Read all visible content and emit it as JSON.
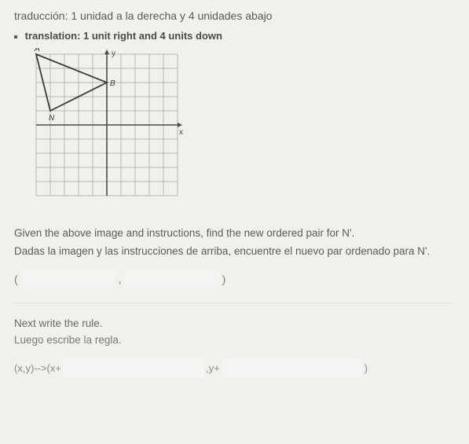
{
  "titles": {
    "spanish": "traducción: 1 unidad a la derecha y 4 unidades abajo",
    "english": "translation: 1 unit right and 4 units down"
  },
  "graph": {
    "cell": 18,
    "cols": 10,
    "rows": 10,
    "origin_col": 5,
    "origin_row": 5,
    "axis_labels": {
      "x": "x",
      "y": "y"
    },
    "grid_color": "#b8b6b2",
    "axis_color": "#4a4a4a",
    "triangle_points_grid": [
      {
        "c": 0,
        "r": 0,
        "label": "A"
      },
      {
        "c": 5,
        "r": 2,
        "label": "B"
      },
      {
        "c": 1,
        "r": 4,
        "label": "N"
      }
    ],
    "triangle_stroke": "#3a3a3a",
    "label_color": "#3a3a3a"
  },
  "prompts": {
    "given_en": "Given the above image and instructions, find the new ordered pair for N'.",
    "given_es": "Dadas la imagen y las instrucciones de arriba, encuentre el nuevo par ordenado para N'.",
    "next_en": "Next write the rule.",
    "next_es": "Luego escribe la regla."
  },
  "pair": {
    "open": "(",
    "comma": ",",
    "close": ")"
  },
  "rule": {
    "lhs": "(x,y)-->(x+",
    "ymid": ",y+",
    "close": ")"
  }
}
